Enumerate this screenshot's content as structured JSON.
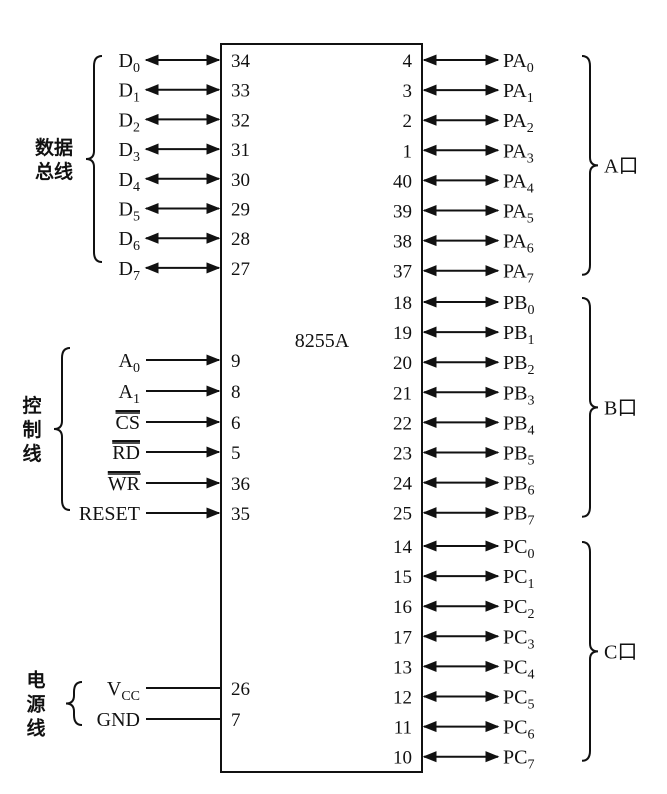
{
  "chip": {
    "name": "8255A"
  },
  "groups": {
    "data_bus": {
      "label_lines": [
        "数据",
        "总线"
      ]
    },
    "control": {
      "label_lines": [
        "控",
        "制",
        "线"
      ]
    },
    "power": {
      "label_lines": [
        "电",
        "源",
        "线"
      ]
    }
  },
  "data_pins": [
    {
      "name": "D",
      "sub": "0",
      "pin": "34"
    },
    {
      "name": "D",
      "sub": "1",
      "pin": "33"
    },
    {
      "name": "D",
      "sub": "2",
      "pin": "32"
    },
    {
      "name": "D",
      "sub": "3",
      "pin": "31"
    },
    {
      "name": "D",
      "sub": "4",
      "pin": "30"
    },
    {
      "name": "D",
      "sub": "5",
      "pin": "29"
    },
    {
      "name": "D",
      "sub": "6",
      "pin": "28"
    },
    {
      "name": "D",
      "sub": "7",
      "pin": "27"
    }
  ],
  "control_pins": [
    {
      "name": "A",
      "sub": "0",
      "pin": "9",
      "overline": false
    },
    {
      "name": "A",
      "sub": "1",
      "pin": "8",
      "overline": false
    },
    {
      "name": "CS",
      "sub": "",
      "pin": "6",
      "overline": true
    },
    {
      "name": "RD",
      "sub": "",
      "pin": "5",
      "overline": true
    },
    {
      "name": "WR",
      "sub": "",
      "pin": "36",
      "overline": true
    },
    {
      "name": "RESET",
      "sub": "",
      "pin": "35",
      "overline": false
    }
  ],
  "power_pins": [
    {
      "name": "V",
      "sub": "CC",
      "pin": "26"
    },
    {
      "name": "GND",
      "sub": "",
      "pin": "7"
    }
  ],
  "port_a": {
    "label": "A口",
    "pins": [
      {
        "name": "PA",
        "sub": "0",
        "pin": "4"
      },
      {
        "name": "PA",
        "sub": "1",
        "pin": "3"
      },
      {
        "name": "PA",
        "sub": "2",
        "pin": "2"
      },
      {
        "name": "PA",
        "sub": "3",
        "pin": "1"
      },
      {
        "name": "PA",
        "sub": "4",
        "pin": "40"
      },
      {
        "name": "PA",
        "sub": "5",
        "pin": "39"
      },
      {
        "name": "PA",
        "sub": "6",
        "pin": "38"
      },
      {
        "name": "PA",
        "sub": "7",
        "pin": "37"
      }
    ]
  },
  "port_b": {
    "label": "B口",
    "pins": [
      {
        "name": "PB",
        "sub": "0",
        "pin": "18"
      },
      {
        "name": "PB",
        "sub": "1",
        "pin": "19"
      },
      {
        "name": "PB",
        "sub": "2",
        "pin": "20"
      },
      {
        "name": "PB",
        "sub": "3",
        "pin": "21"
      },
      {
        "name": "PB",
        "sub": "4",
        "pin": "22"
      },
      {
        "name": "PB",
        "sub": "5",
        "pin": "23"
      },
      {
        "name": "PB",
        "sub": "6",
        "pin": "24"
      },
      {
        "name": "PB",
        "sub": "7",
        "pin": "25"
      }
    ]
  },
  "port_c": {
    "label": "C口",
    "pins": [
      {
        "name": "PC",
        "sub": "0",
        "pin": "14"
      },
      {
        "name": "PC",
        "sub": "1",
        "pin": "15"
      },
      {
        "name": "PC",
        "sub": "2",
        "pin": "16"
      },
      {
        "name": "PC",
        "sub": "3",
        "pin": "17"
      },
      {
        "name": "PC",
        "sub": "4",
        "pin": "13"
      },
      {
        "name": "PC",
        "sub": "5",
        "pin": "12"
      },
      {
        "name": "PC",
        "sub": "6",
        "pin": "11"
      },
      {
        "name": "PC",
        "sub": "7",
        "pin": "10"
      }
    ]
  }
}
